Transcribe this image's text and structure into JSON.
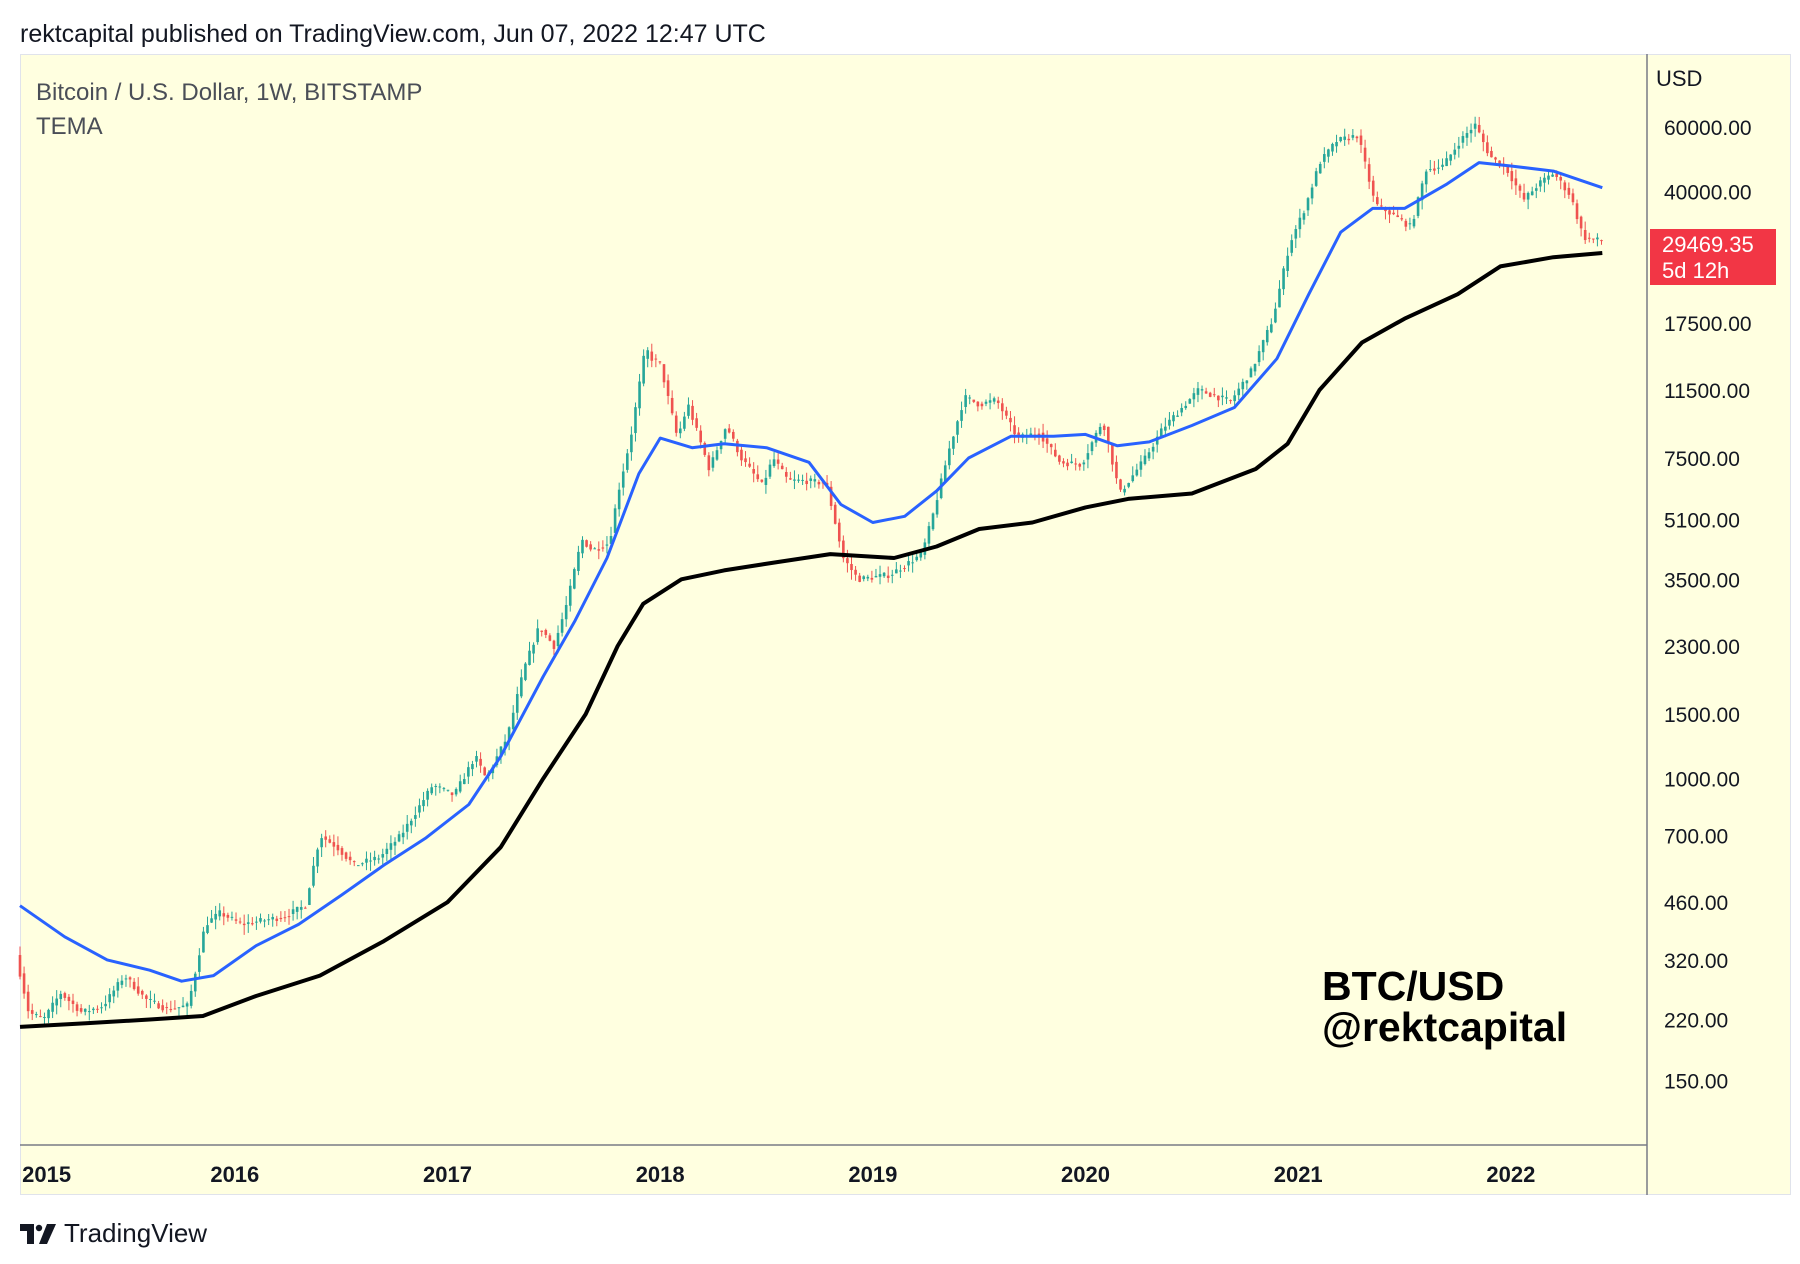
{
  "header": {
    "published": "rektcapital published on TradingView.com, Jun 07, 2022 12:47 UTC"
  },
  "symbol": {
    "title": "Bitcoin / U.S. Dollar, 1W, BITSTAMP",
    "indicator": "TEMA"
  },
  "watermark": {
    "line1": "BTC/USD",
    "line2": "@rektcapital"
  },
  "price_scale": {
    "currency": "USD",
    "last_price": "29469.35",
    "countdown": "5d 12h"
  },
  "footer": {
    "brand": "TradingView"
  },
  "colors": {
    "background": "#ffffe0",
    "up": "#26a69a",
    "down": "#ef5350",
    "tema_fast": "#2962ff",
    "tema_slow": "#000000",
    "price_tag": "#f23645"
  },
  "chart_data": {
    "type": "candlestick",
    "title": "Bitcoin / U.S. Dollar, 1W, BITSTAMP",
    "scale": "log",
    "y_ticks": [
      60000,
      40000,
      17500,
      11500,
      7500,
      5100,
      3500,
      2300,
      1500,
      1000,
      700,
      460,
      320,
      220,
      150
    ],
    "y_tick_labels": [
      "60000.00",
      "40000.00",
      "17500.00",
      "11500.00",
      "7500.00",
      "5100.00",
      "3500.00",
      "2300.00",
      "1500.00",
      "1000.00",
      "700.00",
      "460.00",
      "320.00",
      "220.00",
      "150.00"
    ],
    "x_ticks": [
      2015,
      2016,
      2017,
      2018,
      2019,
      2020,
      2021,
      2022
    ],
    "x_tick_labels": [
      "2015",
      "2016",
      "2017",
      "2018",
      "2019",
      "2020",
      "2021",
      "2022"
    ],
    "x_range": [
      2014.99,
      2022.64
    ],
    "y_range": [
      100,
      95000
    ],
    "price_path": [
      [
        2014.99,
        330
      ],
      [
        2015.05,
        230
      ],
      [
        2015.12,
        220
      ],
      [
        2015.2,
        260
      ],
      [
        2015.3,
        230
      ],
      [
        2015.4,
        240
      ],
      [
        2015.5,
        290
      ],
      [
        2015.6,
        250
      ],
      [
        2015.7,
        235
      ],
      [
        2015.8,
        240
      ],
      [
        2015.88,
        400
      ],
      [
        2015.95,
        430
      ],
      [
        2016.05,
        400
      ],
      [
        2016.15,
        410
      ],
      [
        2016.25,
        420
      ],
      [
        2016.35,
        450
      ],
      [
        2016.42,
        700
      ],
      [
        2016.5,
        650
      ],
      [
        2016.58,
        580
      ],
      [
        2016.7,
        610
      ],
      [
        2016.8,
        700
      ],
      [
        2016.95,
        960
      ],
      [
        2017.05,
        900
      ],
      [
        2017.15,
        1150
      ],
      [
        2017.2,
        1000
      ],
      [
        2017.3,
        1300
      ],
      [
        2017.38,
        2000
      ],
      [
        2017.45,
        2600
      ],
      [
        2017.52,
        2300
      ],
      [
        2017.58,
        3000
      ],
      [
        2017.65,
        4500
      ],
      [
        2017.7,
        4200
      ],
      [
        2017.78,
        4400
      ],
      [
        2017.82,
        6000
      ],
      [
        2017.88,
        8500
      ],
      [
        2017.95,
        15000
      ],
      [
        2017.98,
        14000
      ],
      [
        2018.02,
        13500
      ],
      [
        2018.1,
        8500
      ],
      [
        2018.15,
        10500
      ],
      [
        2018.25,
        7000
      ],
      [
        2018.33,
        9200
      ],
      [
        2018.4,
        7500
      ],
      [
        2018.5,
        6300
      ],
      [
        2018.55,
        7500
      ],
      [
        2018.62,
        6500
      ],
      [
        2018.7,
        6500
      ],
      [
        2018.8,
        6400
      ],
      [
        2018.88,
        4000
      ],
      [
        2018.95,
        3500
      ],
      [
        2019.1,
        3600
      ],
      [
        2019.25,
        4100
      ],
      [
        2019.3,
        5200
      ],
      [
        2019.38,
        8000
      ],
      [
        2019.45,
        11000
      ],
      [
        2019.52,
        10500
      ],
      [
        2019.6,
        10800
      ],
      [
        2019.7,
        8500
      ],
      [
        2019.8,
        8800
      ],
      [
        2019.9,
        7300
      ],
      [
        2020.0,
        7200
      ],
      [
        2020.1,
        9500
      ],
      [
        2020.18,
        6000
      ],
      [
        2020.3,
        7500
      ],
      [
        2020.38,
        9000
      ],
      [
        2020.55,
        11500
      ],
      [
        2020.7,
        10700
      ],
      [
        2020.8,
        13000
      ],
      [
        2020.9,
        18000
      ],
      [
        2020.98,
        29000
      ],
      [
        2021.05,
        36000
      ],
      [
        2021.12,
        48000
      ],
      [
        2021.2,
        55000
      ],
      [
        2021.3,
        57000
      ],
      [
        2021.38,
        37000
      ],
      [
        2021.45,
        35000
      ],
      [
        2021.55,
        32000
      ],
      [
        2021.62,
        46000
      ],
      [
        2021.7,
        47000
      ],
      [
        2021.78,
        55000
      ],
      [
        2021.85,
        61000
      ],
      [
        2021.92,
        50000
      ],
      [
        2022.0,
        46000
      ],
      [
        2022.08,
        38000
      ],
      [
        2022.15,
        42000
      ],
      [
        2022.22,
        45000
      ],
      [
        2022.3,
        39000
      ],
      [
        2022.36,
        30000
      ],
      [
        2022.43,
        29469
      ]
    ],
    "series": [
      {
        "name": "TEMA fast",
        "color": "#2962ff",
        "points": [
          [
            2014.99,
            450
          ],
          [
            2015.2,
            370
          ],
          [
            2015.4,
            320
          ],
          [
            2015.6,
            300
          ],
          [
            2015.75,
            280
          ],
          [
            2015.9,
            290
          ],
          [
            2016.1,
            350
          ],
          [
            2016.3,
            400
          ],
          [
            2016.5,
            480
          ],
          [
            2016.7,
            580
          ],
          [
            2016.9,
            690
          ],
          [
            2017.1,
            850
          ],
          [
            2017.25,
            1150
          ],
          [
            2017.45,
            1900
          ],
          [
            2017.6,
            2700
          ],
          [
            2017.75,
            4000
          ],
          [
            2017.9,
            6800
          ],
          [
            2018.0,
            8500
          ],
          [
            2018.15,
            8000
          ],
          [
            2018.3,
            8200
          ],
          [
            2018.5,
            8000
          ],
          [
            2018.7,
            7300
          ],
          [
            2018.85,
            5600
          ],
          [
            2019.0,
            5000
          ],
          [
            2019.15,
            5200
          ],
          [
            2019.3,
            6100
          ],
          [
            2019.45,
            7500
          ],
          [
            2019.65,
            8600
          ],
          [
            2019.85,
            8600
          ],
          [
            2020.0,
            8700
          ],
          [
            2020.15,
            8100
          ],
          [
            2020.3,
            8300
          ],
          [
            2020.5,
            9200
          ],
          [
            2020.7,
            10300
          ],
          [
            2020.9,
            14000
          ],
          [
            2021.05,
            21000
          ],
          [
            2021.2,
            31000
          ],
          [
            2021.35,
            36000
          ],
          [
            2021.5,
            36000
          ],
          [
            2021.7,
            42000
          ],
          [
            2021.85,
            48000
          ],
          [
            2022.0,
            47000
          ],
          [
            2022.2,
            45500
          ],
          [
            2022.43,
            41000
          ]
        ]
      },
      {
        "name": "TEMA slow",
        "color": "#000000",
        "points": [
          [
            2014.99,
            210
          ],
          [
            2015.3,
            215
          ],
          [
            2015.6,
            220
          ],
          [
            2015.85,
            225
          ],
          [
            2016.1,
            255
          ],
          [
            2016.4,
            290
          ],
          [
            2016.7,
            360
          ],
          [
            2017.0,
            460
          ],
          [
            2017.25,
            650
          ],
          [
            2017.45,
            1000
          ],
          [
            2017.65,
            1500
          ],
          [
            2017.8,
            2300
          ],
          [
            2017.92,
            3000
          ],
          [
            2018.1,
            3500
          ],
          [
            2018.3,
            3700
          ],
          [
            2018.55,
            3900
          ],
          [
            2018.8,
            4100
          ],
          [
            2019.1,
            4000
          ],
          [
            2019.3,
            4300
          ],
          [
            2019.5,
            4800
          ],
          [
            2019.75,
            5000
          ],
          [
            2020.0,
            5500
          ],
          [
            2020.2,
            5800
          ],
          [
            2020.5,
            6000
          ],
          [
            2020.8,
            7000
          ],
          [
            2020.95,
            8200
          ],
          [
            2021.1,
            11500
          ],
          [
            2021.3,
            15500
          ],
          [
            2021.5,
            18000
          ],
          [
            2021.75,
            21000
          ],
          [
            2021.95,
            25000
          ],
          [
            2022.2,
            26500
          ],
          [
            2022.43,
            27200
          ]
        ]
      }
    ]
  }
}
